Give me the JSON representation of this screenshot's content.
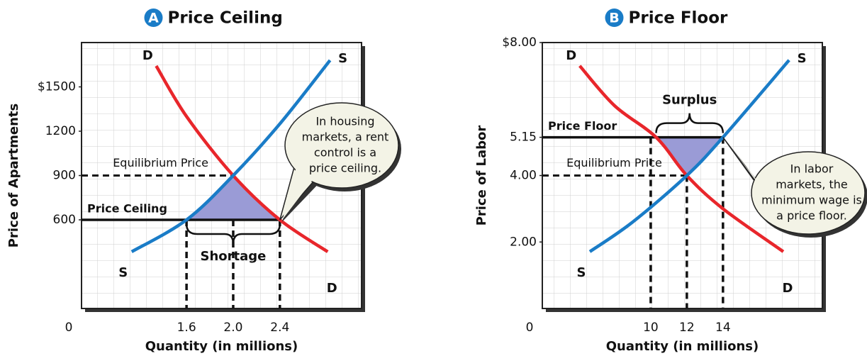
{
  "chart_data": [
    {
      "type": "line",
      "badge": "A",
      "title": "Price Ceiling",
      "y_label": "Price of Apartments",
      "x_label": "Quantity (in millions)",
      "origin_label": "0",
      "xlim": [
        0.7,
        3.1
      ],
      "ylim": [
        0,
        1800
      ],
      "xticks": [
        1.6,
        {
          "value": 2,
          "label": "2.0"
        },
        2.4
      ],
      "yticks": [
        600,
        900,
        1200,
        {
          "value": 1500,
          "label": "$1500"
        }
      ],
      "series": [
        {
          "name": "D",
          "color": "#e8262b",
          "x": [
            1.34,
            1.6,
            2.0,
            2.4,
            2.81
          ],
          "values": [
            1642,
            1300,
            900,
            600,
            384
          ]
        },
        {
          "name": "S",
          "color": "#1a7cc7",
          "x": [
            1.13,
            1.6,
            2.0,
            2.4,
            2.83
          ],
          "values": [
            384,
            600,
            900,
            1250,
            1680
          ]
        }
      ],
      "control": {
        "label": "Price Ceiling",
        "value": 600
      },
      "equilibrium": {
        "label": "Equilibrium Price",
        "x": 2,
        "value": 900
      },
      "gap": {
        "label": "Shortage",
        "color": "#9a9bd6",
        "x": [
          1.6,
          2.4,
          2.0
        ],
        "values": [
          600,
          600,
          900
        ]
      },
      "callout": [
        "In housing",
        "markets, a rent",
        "control is a",
        "price ceiling."
      ]
    },
    {
      "type": "line",
      "badge": "B",
      "title": "Price Floor",
      "y_label": "Price of Labor",
      "x_label": "Quantity (in millions)",
      "origin_label": "0",
      "xlim": [
        4,
        19.5
      ],
      "ylim": [
        0,
        8
      ],
      "xticks": [
        10,
        12,
        14
      ],
      "yticks": [
        {
          "value": 2,
          "label": "2.00"
        },
        {
          "value": 4,
          "label": "4.00"
        },
        5.15,
        {
          "value": 8,
          "label": "$8.00"
        }
      ],
      "series": [
        {
          "name": "D",
          "color": "#e8262b",
          "x": [
            6.07,
            8,
            10.3,
            12,
            14,
            17.34
          ],
          "values": [
            7.3,
            6.1,
            5.15,
            4,
            3.0,
            1.71
          ]
        },
        {
          "name": "S",
          "color": "#1a7cc7",
          "x": [
            6.63,
            9,
            12,
            14,
            17.66
          ],
          "values": [
            1.71,
            2.6,
            4,
            5.15,
            7.47
          ]
        }
      ],
      "control": {
        "label": "Price Floor",
        "value": 5.15
      },
      "equilibrium": {
        "label": "Equilibrium Price",
        "x": 12,
        "value": 4
      },
      "gap": {
        "label": "Surplus",
        "color": "#9a9bd6",
        "x": [
          10.3,
          14,
          12
        ],
        "values": [
          5.15,
          5.15,
          4
        ]
      },
      "callout": [
        "In labor",
        "markets, the",
        "minimum wage is",
        "a price floor."
      ]
    }
  ]
}
